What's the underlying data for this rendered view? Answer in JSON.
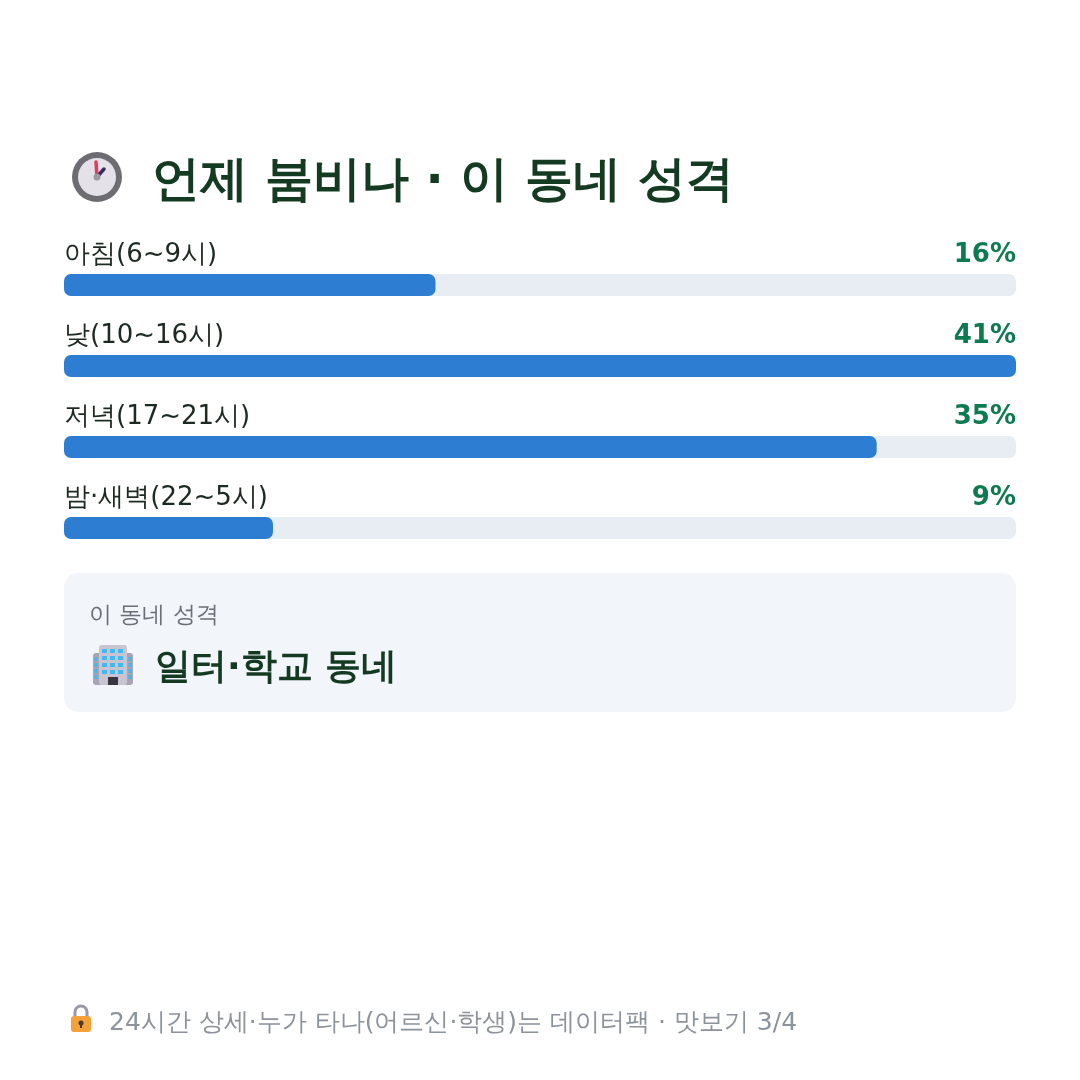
{
  "chart_data": [
    {
      "type": "bar",
      "orientation": "horizontal",
      "title": "언제 붐비나 · 이 동네 성격",
      "categories": [
        "아침(6~9시)",
        "낮(10~16시)",
        "저녁(17~21시)",
        "밤·새벽(22~5시)"
      ],
      "values": [
        16,
        41,
        35,
        9
      ],
      "color": "#2d7dd2",
      "value_labels": [
        "16%",
        "41%",
        "35%",
        "9%"
      ],
      "bands": [
        {
          "axis": "x",
          "from": 0,
          "to": 41,
          "color": "#e8edf4"
        }
      ],
      "annotations": [
        "24시간 상세·누가 타나(어르신·학생)는 데이터팩 · 맛보기 3/4"
      ]
    },
    {
      "type": "other",
      "title": "이 동네 성격",
      "subtitle": "일터·학교 동네"
    }
  ]
}
